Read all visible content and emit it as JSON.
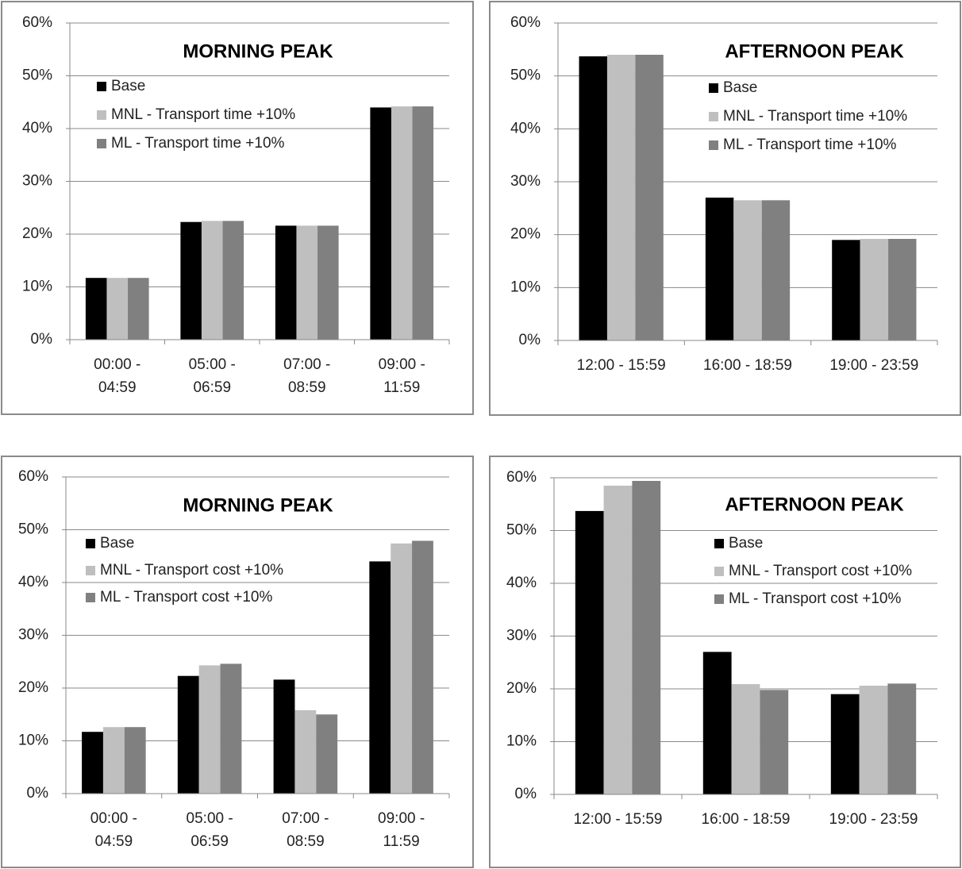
{
  "chart_data": [
    {
      "type": "bar",
      "title": "MORNING PEAK",
      "categories": [
        "00:00 - 04:59",
        "05:00 - 06:59",
        "07:00 - 08:59",
        "09:00 - 11:59"
      ],
      "series": [
        {
          "name": "Base",
          "color": "#000000",
          "values": [
            11.7,
            22.3,
            21.6,
            44.0
          ]
        },
        {
          "name": "MNL - Transport time +10%",
          "color": "#bfbfbf",
          "values": [
            11.7,
            22.5,
            21.6,
            44.2
          ]
        },
        {
          "name": "ML - Transport time +10%",
          "color": "#808080",
          "values": [
            11.7,
            22.5,
            21.6,
            44.2
          ]
        }
      ],
      "ylim": [
        0,
        60
      ],
      "yticks": [
        {
          "value": 0,
          "label": "0%"
        },
        {
          "value": 10,
          "label": "10%"
        },
        {
          "value": 20,
          "label": "20%"
        },
        {
          "value": 30,
          "label": "30%"
        },
        {
          "value": 40,
          "label": "40%"
        },
        {
          "value": 50,
          "label": "50%"
        },
        {
          "value": 60,
          "label": "60%"
        }
      ],
      "grid": true
    },
    {
      "type": "bar",
      "title": "AFTERNOON PEAK",
      "categories": [
        "12:00 - 15:59",
        "16:00 - 18:59",
        "19:00 - 23:59"
      ],
      "series": [
        {
          "name": "Base",
          "color": "#000000",
          "values": [
            53.7,
            27.0,
            19.0
          ]
        },
        {
          "name": "MNL - Transport time +10%",
          "color": "#bfbfbf",
          "values": [
            54.0,
            26.5,
            19.2
          ]
        },
        {
          "name": "ML - Transport time +10%",
          "color": "#808080",
          "values": [
            54.0,
            26.5,
            19.2
          ]
        }
      ],
      "ylim": [
        0,
        60
      ],
      "yticks": [
        {
          "value": 0,
          "label": "0%"
        },
        {
          "value": 10,
          "label": "10%"
        },
        {
          "value": 20,
          "label": "20%"
        },
        {
          "value": 30,
          "label": "30%"
        },
        {
          "value": 40,
          "label": "40%"
        },
        {
          "value": 50,
          "label": "50%"
        },
        {
          "value": 60,
          "label": "60%"
        }
      ],
      "grid": true
    },
    {
      "type": "bar",
      "title": "MORNING PEAK",
      "categories": [
        "00:00 - 04:59",
        "05:00 - 06:59",
        "07:00 - 08:59",
        "09:00 - 11:59"
      ],
      "series": [
        {
          "name": "Base",
          "color": "#000000",
          "values": [
            11.7,
            22.3,
            21.6,
            44.0
          ]
        },
        {
          "name": "MNL - Transport cost +10%",
          "color": "#bfbfbf",
          "values": [
            12.6,
            24.3,
            15.8,
            47.4
          ]
        },
        {
          "name": "ML - Transport cost +10%",
          "color": "#808080",
          "values": [
            12.6,
            24.6,
            15.0,
            47.9
          ]
        }
      ],
      "ylim": [
        0,
        60
      ],
      "yticks": [
        {
          "value": 0,
          "label": "0%"
        },
        {
          "value": 10,
          "label": "10%"
        },
        {
          "value": 20,
          "label": "20%"
        },
        {
          "value": 30,
          "label": "30%"
        },
        {
          "value": 40,
          "label": "40%"
        },
        {
          "value": 50,
          "label": "50%"
        },
        {
          "value": 60,
          "label": "60%"
        }
      ],
      "grid": true
    },
    {
      "type": "bar",
      "title": "AFTERNOON PEAK",
      "categories": [
        "12:00 - 15:59",
        "16:00 - 18:59",
        "19:00 - 23:59"
      ],
      "series": [
        {
          "name": "Base",
          "color": "#000000",
          "values": [
            53.7,
            27.0,
            19.0
          ]
        },
        {
          "name": "MNL - Transport cost +10%",
          "color": "#bfbfbf",
          "values": [
            58.5,
            20.9,
            20.6
          ]
        },
        {
          "name": "ML - Transport cost +10%",
          "color": "#808080",
          "values": [
            59.4,
            19.8,
            21.0
          ]
        }
      ],
      "ylim": [
        0,
        60
      ],
      "yticks": [
        {
          "value": 0,
          "label": "0%"
        },
        {
          "value": 10,
          "label": "10%"
        },
        {
          "value": 20,
          "label": "20%"
        },
        {
          "value": 30,
          "label": "30%"
        },
        {
          "value": 40,
          "label": "40%"
        },
        {
          "value": 50,
          "label": "50%"
        },
        {
          "value": 60,
          "label": "60%"
        }
      ],
      "grid": true
    }
  ]
}
